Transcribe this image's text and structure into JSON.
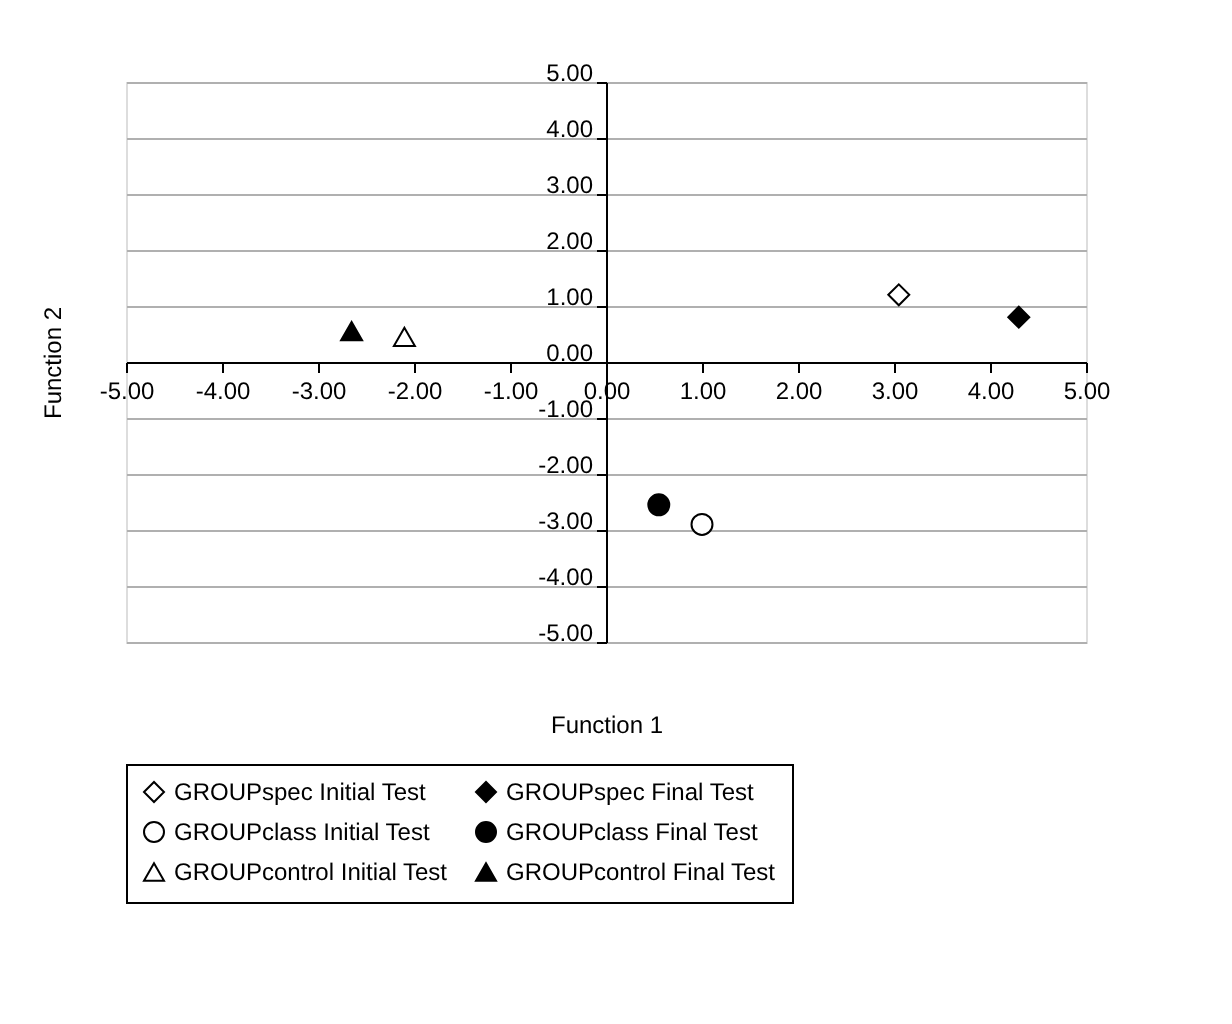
{
  "chart_data": {
    "type": "scatter",
    "xlabel": "Function 1",
    "ylabel": "Function 2",
    "xlim": [
      -5,
      5
    ],
    "ylim": [
      -5,
      5
    ],
    "xticks": [
      {
        "value": -5,
        "label": "-5.00"
      },
      {
        "value": -4,
        "label": "-4.00"
      },
      {
        "value": -3,
        "label": "-3.00"
      },
      {
        "value": -2,
        "label": "-2.00"
      },
      {
        "value": -1,
        "label": "-1.00"
      },
      {
        "value": 0,
        "label": "0.00"
      },
      {
        "value": 1,
        "label": "1.00"
      },
      {
        "value": 2,
        "label": "2.00"
      },
      {
        "value": 3,
        "label": "3.00"
      },
      {
        "value": 4,
        "label": "4.00"
      },
      {
        "value": 5,
        "label": "5.00"
      }
    ],
    "yticks": [
      {
        "value": -5,
        "label": "-5.00"
      },
      {
        "value": -4,
        "label": "-4.00"
      },
      {
        "value": -3,
        "label": "-3.00"
      },
      {
        "value": -2,
        "label": "-2.00"
      },
      {
        "value": -1,
        "label": "-1.00"
      },
      {
        "value": 0,
        "label": "0.00"
      },
      {
        "value": 1,
        "label": "1.00"
      },
      {
        "value": 2,
        "label": "2.00"
      },
      {
        "value": 3,
        "label": "3.00"
      },
      {
        "value": 4,
        "label": "4.00"
      },
      {
        "value": 5,
        "label": "5.00"
      }
    ],
    "grid": "y",
    "legend": "bottom",
    "series": [
      {
        "name": "GROUPspec Initial Test",
        "color": "#ffffff",
        "marker": "diamond",
        "x": [
          3.05
        ],
        "values": [
          1.2
        ]
      },
      {
        "name": "GROUPspec Final Test",
        "color": "#000000",
        "marker": "diamond",
        "x": [
          4.3
        ],
        "values": [
          0.8
        ]
      },
      {
        "name": "GROUPclass Initial Test",
        "color": "#ffffff",
        "marker": "circle",
        "x": [
          1.0
        ],
        "values": [
          -2.9
        ]
      },
      {
        "name": "GROUPclass Final Test",
        "color": "#000000",
        "marker": "circle",
        "x": [
          0.55
        ],
        "values": [
          -2.55
        ]
      },
      {
        "name": "GROUPcontrol Initial Test",
        "color": "#ffffff",
        "marker": "triangle",
        "x": [
          -2.1
        ],
        "values": [
          0.45
        ]
      },
      {
        "name": "GROUPcontrol Final Test",
        "color": "#000000",
        "marker": "triangle",
        "x": [
          -2.65
        ],
        "values": [
          0.55
        ]
      }
    ]
  }
}
